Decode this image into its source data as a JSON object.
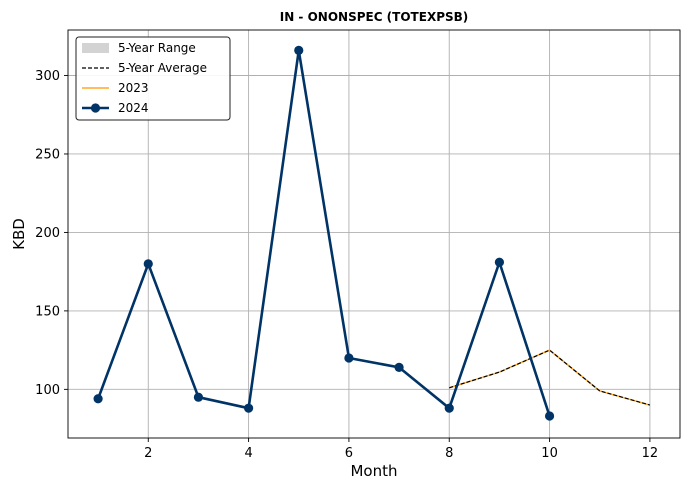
{
  "chart_data": {
    "type": "line",
    "title": "IN - ONONSPEC (TOTEXPSB)",
    "xlabel": "Month",
    "ylabel": "KBD",
    "xlim": [
      0.4,
      12.6
    ],
    "ylim": [
      69,
      329
    ],
    "x_ticks": [
      2,
      4,
      6,
      8,
      10,
      12
    ],
    "y_ticks": [
      100,
      150,
      200,
      250,
      300
    ],
    "grid": true,
    "legend_position": "top-left",
    "legend": [
      {
        "label": "5-Year Range",
        "kind": "range",
        "color": "#d3d3d3"
      },
      {
        "label": "5-Year Average",
        "kind": "dashed",
        "color": "#000000"
      },
      {
        "label": "2023",
        "kind": "line",
        "color": "#ffa726"
      },
      {
        "label": "2024",
        "kind": "line-marker",
        "color": "#003366"
      }
    ],
    "range": {
      "name": "5-Year Range",
      "color": "#d3d3d3",
      "x": [
        8,
        9,
        10,
        11,
        12
      ],
      "low": [
        101,
        111,
        125,
        99,
        90
      ],
      "high": [
        101,
        111,
        125,
        99,
        90
      ]
    },
    "series": [
      {
        "name": "5-Year Average",
        "style": "dashed",
        "color": "#000000",
        "x": [
          8,
          9,
          10,
          11,
          12
        ],
        "values": [
          101,
          111,
          125,
          99,
          90
        ]
      },
      {
        "name": "2023",
        "style": "line",
        "color": "#ffa726",
        "x": [
          8,
          9,
          10,
          11,
          12
        ],
        "values": [
          101,
          111,
          125,
          99,
          90
        ]
      },
      {
        "name": "2024",
        "style": "line-marker",
        "color": "#003366",
        "x": [
          1,
          2,
          3,
          4,
          5,
          6,
          7,
          8,
          9,
          10
        ],
        "values": [
          94,
          180,
          95,
          88,
          316,
          120,
          114,
          88,
          181,
          83
        ]
      }
    ]
  }
}
